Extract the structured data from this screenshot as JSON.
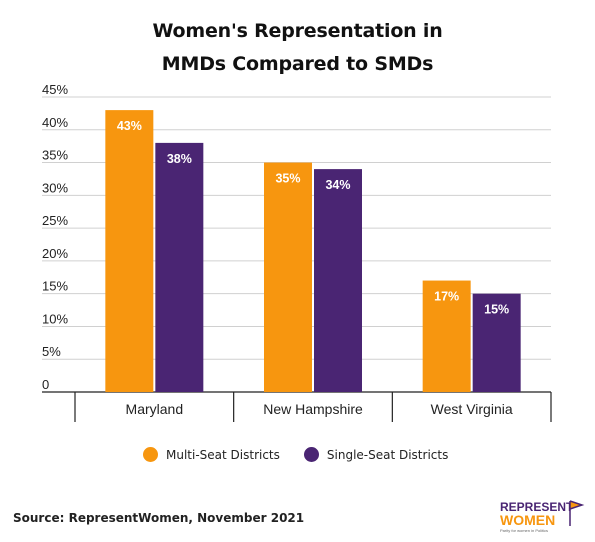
{
  "title_line1": "Women's Representation in",
  "title_line2": "MMDs Compared to SMDs",
  "chart_data": {
    "type": "bar",
    "categories": [
      "Maryland",
      "New Hampshire",
      "West Virginia"
    ],
    "series": [
      {
        "name": "Multi-Seat Districts",
        "values": [
          43,
          35,
          17
        ],
        "labels": [
          "43%",
          "35%",
          "17%"
        ],
        "color": "#F7960F"
      },
      {
        "name": "Single-Seat Districts",
        "values": [
          38,
          34,
          15
        ],
        "labels": [
          "38%",
          "34%",
          "15%"
        ],
        "color": "#4A2573"
      }
    ],
    "ylim": [
      0,
      45
    ],
    "yticks": [
      {
        "value": 0,
        "label": "0"
      },
      {
        "value": 5,
        "label": "5%"
      },
      {
        "value": 10,
        "label": "10%"
      },
      {
        "value": 15,
        "label": "15%"
      },
      {
        "value": 20,
        "label": "20%"
      },
      {
        "value": 25,
        "label": "25%"
      },
      {
        "value": 30,
        "label": "30%"
      },
      {
        "value": 35,
        "label": "35%"
      },
      {
        "value": 40,
        "label": "40%"
      },
      {
        "value": 45,
        "label": "45%"
      }
    ],
    "grid": true,
    "legend": "bottom"
  },
  "source": "Source: RepresentWomen, November 2021",
  "logo": {
    "line1": "REPRESENT",
    "line2": "WOMEN",
    "tagline": "Parity for women in Politics",
    "color_top": "#4A2573",
    "color_bottom": "#F7960F"
  }
}
